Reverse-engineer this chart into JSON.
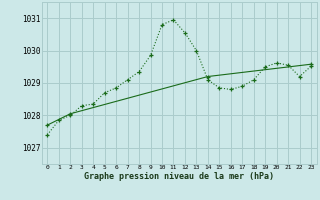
{
  "title": "Graphe pression niveau de la mer (hPa)",
  "bg_color": "#cce8e8",
  "grid_color": "#aacccc",
  "line_color": "#1a6b1a",
  "x_ticks": [
    0,
    1,
    2,
    3,
    4,
    5,
    6,
    7,
    8,
    9,
    10,
    11,
    12,
    13,
    14,
    15,
    16,
    17,
    18,
    19,
    20,
    21,
    22,
    23
  ],
  "y_ticks": [
    1027,
    1028,
    1029,
    1030,
    1031
  ],
  "ylim": [
    1026.5,
    1031.5
  ],
  "xlim": [
    -0.5,
    23.5
  ],
  "series1_x": [
    0,
    1,
    2,
    3,
    4,
    5,
    6,
    7,
    8,
    9,
    10,
    11,
    12,
    13,
    14,
    15,
    16,
    17,
    18,
    19,
    20,
    21,
    22,
    23
  ],
  "series1_y": [
    1027.4,
    1027.85,
    1028.0,
    1028.3,
    1028.35,
    1028.7,
    1028.85,
    1029.1,
    1029.35,
    1029.85,
    1030.8,
    1030.95,
    1030.55,
    1030.0,
    1029.1,
    1028.85,
    1028.8,
    1028.9,
    1029.1,
    1029.5,
    1029.62,
    1029.55,
    1029.2,
    1029.52
  ],
  "series2_x": [
    0,
    2,
    14,
    23
  ],
  "series2_y": [
    1027.7,
    1028.05,
    1029.2,
    1029.58
  ]
}
